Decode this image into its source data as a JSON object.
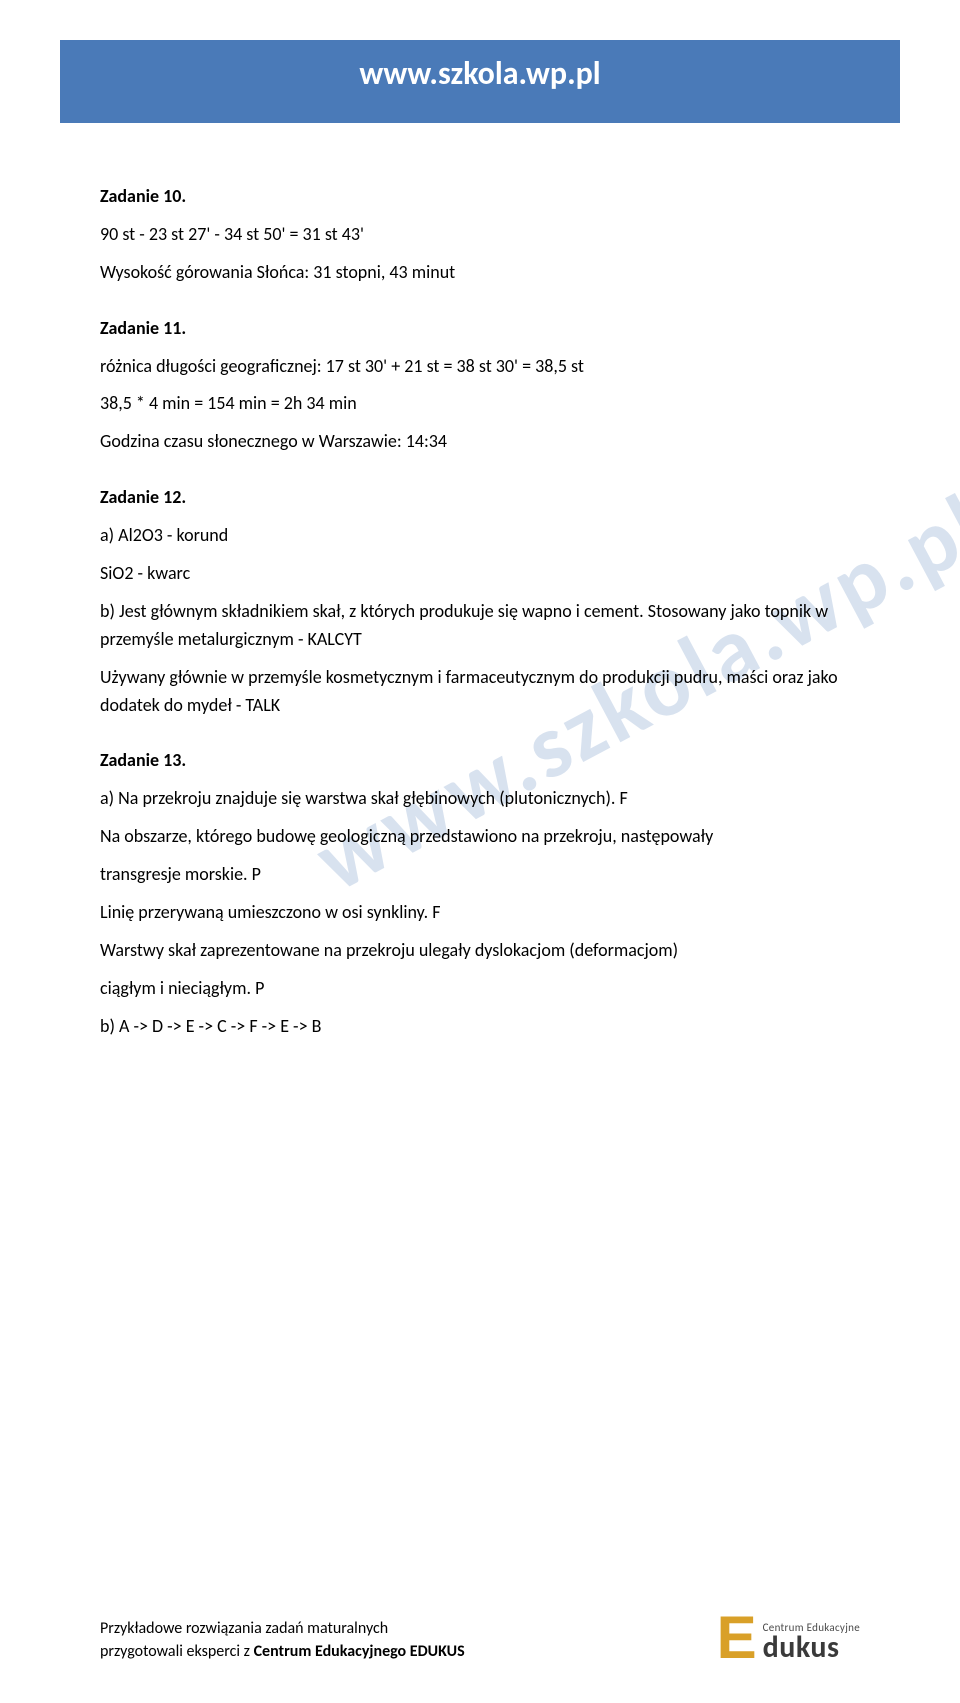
{
  "header": {
    "title": "www.szkola.wp.pl"
  },
  "watermark": "www.szkola.wp.pl",
  "tasks": {
    "t10": {
      "heading": "Zadanie 10.",
      "line1": "90 st - 23 st 27' - 34 st 50' = 31 st 43'",
      "line2": "Wysokość górowania Słońca: 31 stopni, 43 minut"
    },
    "t11": {
      "heading": "Zadanie 11.",
      "line1": "różnica długości geograficznej: 17 st 30' + 21 st = 38 st 30' = 38,5 st",
      "line2": "38,5 * 4 min = 154 min = 2h 34 min",
      "line3": "Godzina czasu słonecznego w Warszawie: 14:34"
    },
    "t12": {
      "heading": "Zadanie 12.",
      "line1": "a) Al2O3 - korund",
      "line2": "SiO2 - kwarc",
      "line3": "b) Jest głównym składnikiem skał, z których produkuje się wapno i cement. Stosowany jako topnik w przemyśle metalurgicznym - KALCYT",
      "line4": "Używany głównie w przemyśle kosmetycznym i farmaceutycznym do produkcji pudru, maści oraz jako dodatek do mydeł - TALK"
    },
    "t13": {
      "heading": "Zadanie 13.",
      "line1": "a) Na przekroju znajduje się warstwa skał głębinowych (plutonicznych). F",
      "line2": "Na obszarze, którego budowę geologiczną przedstawiono na przekroju, następowały",
      "line3": "transgresje morskie. P",
      "line4": "Linię przerywaną umieszczono w osi synkliny. F",
      "line5": "Warstwy skał zaprezentowane na przekroju ulegały dyslokacjom (deformacjom)",
      "line6": "ciągłym i nieciągłym. P",
      "line7": "b) A -> D -> E -> C -> F -> E -> B"
    }
  },
  "footer": {
    "line1": "Przykładowe rozwiązania zadań maturalnych",
    "line2_plain": "przygotowali eksperci z ",
    "line2_bold": "Centrum Edukacyjnego EDUKUS"
  },
  "logo": {
    "letter": "E",
    "top": "Centrum Edukacyjne",
    "bottom": "dukus"
  }
}
